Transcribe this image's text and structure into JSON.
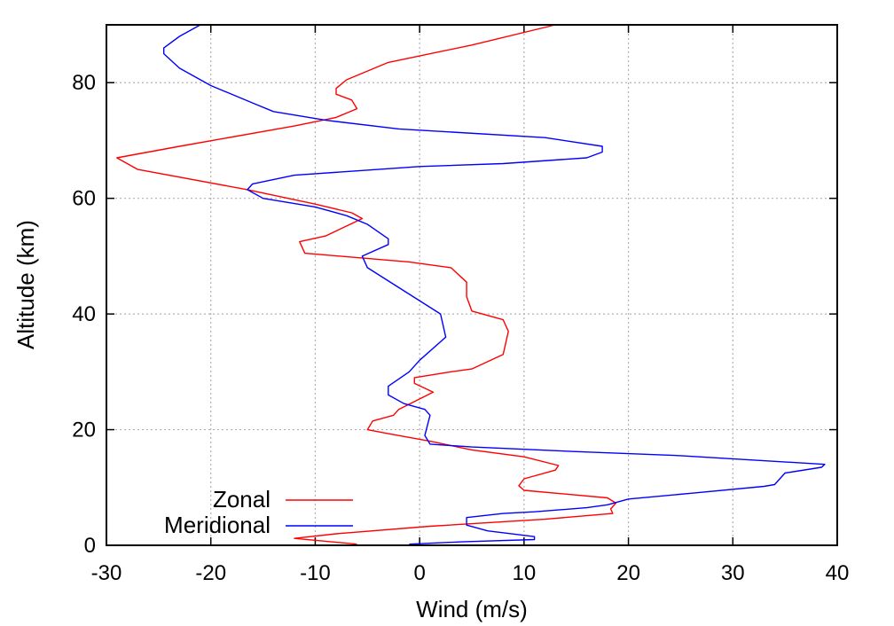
{
  "chart_data": {
    "type": "line",
    "title": "",
    "xlabel": "Wind (m/s)",
    "ylabel": "Altitude (km)",
    "xlim": [
      -30,
      40
    ],
    "ylim": [
      0,
      90
    ],
    "xticks": [
      "-30",
      "-20",
      "-10",
      "0",
      "10",
      "20",
      "30",
      "40"
    ],
    "yticks": [
      "0",
      "20",
      "40",
      "60",
      "80"
    ],
    "grid": true,
    "legend_position": "bottom-left",
    "series": [
      {
        "name": "Zonal",
        "color": "#ff0000",
        "points": [
          [
            -6,
            0.2
          ],
          [
            -12,
            1.2
          ],
          [
            -8,
            2
          ],
          [
            1,
            3.3
          ],
          [
            12,
            4.5
          ],
          [
            18.5,
            5.5
          ],
          [
            18.3,
            6.3
          ],
          [
            18.8,
            7.3
          ],
          [
            18,
            8.2
          ],
          [
            10,
            9.5
          ],
          [
            9.5,
            10.3
          ],
          [
            10,
            11.5
          ],
          [
            13,
            13
          ],
          [
            13.3,
            13.8
          ],
          [
            10,
            15.3
          ],
          [
            5,
            16.5
          ],
          [
            1,
            18
          ],
          [
            -3,
            19.3
          ],
          [
            -5,
            20
          ],
          [
            -4.5,
            21.5
          ],
          [
            -2.5,
            22.5
          ],
          [
            -2,
            23.5
          ],
          [
            1.3,
            26.5
          ],
          [
            -0.5,
            28
          ],
          [
            -0.5,
            29
          ],
          [
            3,
            30
          ],
          [
            5,
            30.5
          ],
          [
            8,
            33
          ],
          [
            8.5,
            37
          ],
          [
            8,
            39
          ],
          [
            5,
            40.5
          ],
          [
            4.5,
            43
          ],
          [
            4.5,
            45.5
          ],
          [
            3,
            48
          ],
          [
            -1,
            49
          ],
          [
            -11,
            50.5
          ],
          [
            -11.5,
            52.5
          ],
          [
            -9,
            53.5
          ],
          [
            -5.5,
            56.5
          ],
          [
            -6.5,
            57.5
          ],
          [
            -10,
            59
          ],
          [
            -16.5,
            61.5
          ],
          [
            -27,
            65
          ],
          [
            -29,
            67
          ],
          [
            -23,
            69
          ],
          [
            -12,
            72.5
          ],
          [
            -8,
            74
          ],
          [
            -6,
            75.5
          ],
          [
            -6.5,
            77
          ],
          [
            -8,
            78
          ],
          [
            -8,
            79
          ],
          [
            -7,
            80.5
          ],
          [
            -3,
            83.5
          ],
          [
            5,
            86.5
          ],
          [
            13,
            90
          ]
        ]
      },
      {
        "name": "Meridional",
        "color": "#0000ff",
        "points": [
          [
            -1,
            0.2
          ],
          [
            4,
            0.6
          ],
          [
            11,
            1
          ],
          [
            11,
            1.5
          ],
          [
            6.5,
            2.5
          ],
          [
            4.5,
            3.5
          ],
          [
            4.5,
            4.8
          ],
          [
            8,
            5.5
          ],
          [
            11,
            5.8
          ],
          [
            16,
            6.5
          ],
          [
            18,
            7
          ],
          [
            20,
            8
          ],
          [
            26,
            9
          ],
          [
            33,
            10.2
          ],
          [
            34,
            10.5
          ],
          [
            35,
            12.5
          ],
          [
            38.5,
            13.5
          ],
          [
            38.8,
            14
          ],
          [
            25,
            15.5
          ],
          [
            15,
            16.2
          ],
          [
            5,
            17
          ],
          [
            1,
            17.5
          ],
          [
            0.5,
            19
          ],
          [
            1,
            22.5
          ],
          [
            0.5,
            23.5
          ],
          [
            -1.5,
            24.5
          ],
          [
            -3,
            26
          ],
          [
            -3,
            27.5
          ],
          [
            -1,
            30
          ],
          [
            0,
            32
          ],
          [
            2.5,
            36
          ],
          [
            2,
            40
          ],
          [
            -1.5,
            44
          ],
          [
            -5,
            48
          ],
          [
            -5.5,
            50
          ],
          [
            -3,
            52
          ],
          [
            -3,
            53
          ],
          [
            -5,
            55.5
          ],
          [
            -7,
            57
          ],
          [
            -10,
            58.5
          ],
          [
            -15,
            60
          ],
          [
            -16.5,
            61.5
          ],
          [
            -16,
            62.5
          ],
          [
            -12,
            64
          ],
          [
            0,
            65.5
          ],
          [
            8,
            66
          ],
          [
            16,
            67
          ],
          [
            17.5,
            68
          ],
          [
            17.5,
            69
          ],
          [
            12,
            70.5
          ],
          [
            -2,
            72
          ],
          [
            -9,
            73.5
          ],
          [
            -14,
            75
          ],
          [
            -16,
            76.5
          ],
          [
            -20,
            79.5
          ],
          [
            -23,
            82.5
          ],
          [
            -24.5,
            85
          ],
          [
            -24.5,
            86
          ],
          [
            -23,
            88
          ],
          [
            -21,
            90
          ]
        ]
      }
    ]
  }
}
